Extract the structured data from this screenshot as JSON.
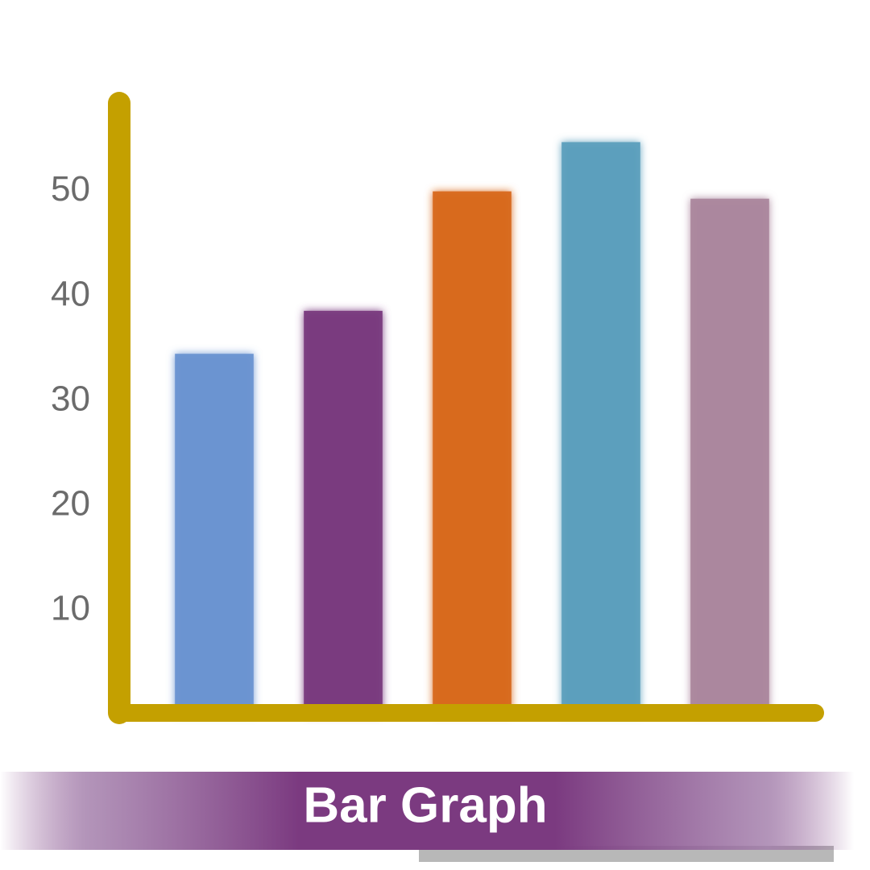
{
  "chart_data": {
    "type": "bar",
    "title": "Bar Graph",
    "categories": [
      null,
      null,
      null,
      null,
      null
    ],
    "values": [
      34.5,
      38.6,
      50,
      54.7,
      49.3
    ],
    "colors": [
      "#6a93d1",
      "#793a7e",
      "#d8691e",
      "#5c9fbd",
      "#ab879d"
    ],
    "ylim": [
      0,
      57.5
    ],
    "yticks": [
      10,
      20,
      30,
      40,
      50
    ],
    "grid": false
  }
}
